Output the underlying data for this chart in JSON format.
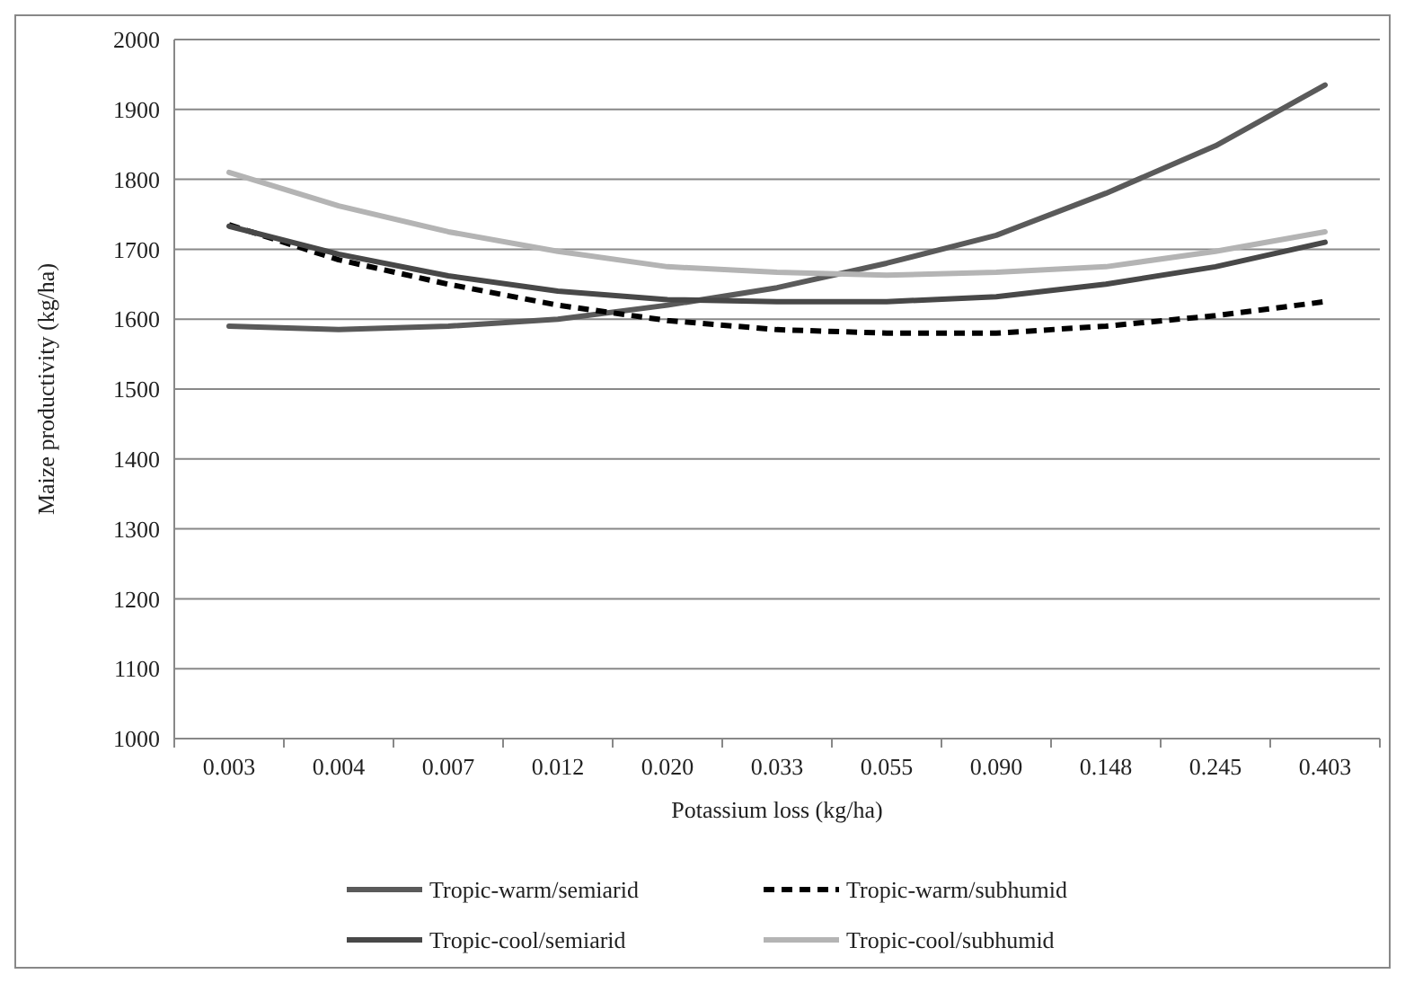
{
  "chart_data": {
    "type": "line",
    "xlabel": "Potassium loss (kg/ha)",
    "ylabel": "Maize productivity (kg/ha)",
    "categories": [
      "0.003",
      "0.004",
      "0.007",
      "0.012",
      "0.020",
      "0.033",
      "0.055",
      "0.090",
      "0.148",
      "0.245",
      "0.403"
    ],
    "series": [
      {
        "name": "Tropic-warm/semiarid",
        "color": "#5a5a5a",
        "line_style": "solid",
        "values": [
          1590,
          1585,
          1590,
          1600,
          1620,
          1645,
          1680,
          1720,
          1780,
          1848,
          1935
        ]
      },
      {
        "name": "Tropic-warm/subhumid",
        "color": "#000000",
        "line_style": "dashed",
        "values": [
          1735,
          1685,
          1650,
          1620,
          1598,
          1585,
          1580,
          1580,
          1590,
          1605,
          1625
        ]
      },
      {
        "name": "Tropic-cool/semiarid",
        "color": "#484848",
        "line_style": "solid",
        "values": [
          1733,
          1693,
          1662,
          1640,
          1628,
          1625,
          1625,
          1632,
          1650,
          1675,
          1710
        ]
      },
      {
        "name": "Tropic-cool/subhumid",
        "color": "#b4b4b4",
        "line_style": "solid",
        "values": [
          1810,
          1762,
          1725,
          1697,
          1675,
          1667,
          1663,
          1667,
          1675,
          1697,
          1725
        ]
      }
    ],
    "ylim": [
      1000,
      2000
    ],
    "yticks": [
      1000,
      1100,
      1200,
      1300,
      1400,
      1500,
      1600,
      1700,
      1800,
      1900,
      2000
    ],
    "grid": "y",
    "legend": "bottom",
    "marker": "none"
  }
}
